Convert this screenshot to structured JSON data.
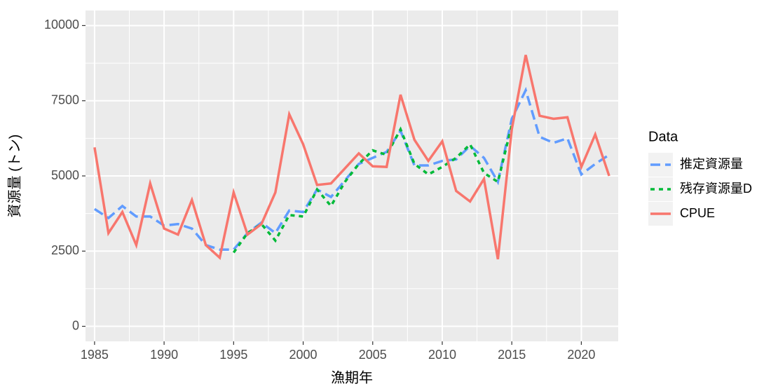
{
  "chart_data": {
    "type": "line",
    "xlabel": "漁期年",
    "ylabel": "資源量 (トン)",
    "legend_title": "Data",
    "x": [
      1985,
      1986,
      1987,
      1988,
      1989,
      1990,
      1991,
      1992,
      1993,
      1994,
      1995,
      1996,
      1997,
      1998,
      1999,
      2000,
      2001,
      2002,
      2003,
      2004,
      2005,
      2006,
      2007,
      2008,
      2009,
      2010,
      2011,
      2012,
      2013,
      2014,
      2015,
      2016,
      2017,
      2018,
      2019,
      2020,
      2021,
      2022
    ],
    "series": [
      {
        "name": "推定資源量",
        "color": "#619cff",
        "linetype": "dashed",
        "values": [
          3900,
          3600,
          4000,
          3650,
          3650,
          3350,
          3400,
          3250,
          2700,
          2550,
          2550,
          3100,
          3450,
          3100,
          3850,
          3800,
          4550,
          4300,
          4850,
          5400,
          5600,
          5800,
          6500,
          5350,
          5350,
          5500,
          5550,
          6000,
          5600,
          4800,
          6900,
          7850,
          6300,
          6100,
          6250,
          5050,
          5400,
          5700
        ]
      },
      {
        "name": "残存資源量D",
        "color": "#00ba38",
        "linetype": "dotted",
        "values": [
          null,
          null,
          null,
          null,
          null,
          null,
          null,
          null,
          null,
          null,
          2450,
          3100,
          3400,
          2850,
          3700,
          3650,
          4550,
          4000,
          4800,
          5400,
          5850,
          5700,
          6550,
          5400,
          5050,
          5300,
          5600,
          6050,
          5100,
          4800,
          6700,
          null,
          null,
          null,
          null,
          null,
          null,
          null
        ]
      },
      {
        "name": "CPUE",
        "color": "#f8766d",
        "linetype": "solid",
        "values": [
          5950,
          3100,
          3800,
          2700,
          4750,
          3250,
          3050,
          4200,
          2700,
          2280,
          4450,
          3050,
          3400,
          4450,
          7050,
          6050,
          4700,
          4750,
          5250,
          5750,
          5320,
          5300,
          7700,
          6200,
          5500,
          6150,
          4500,
          4150,
          4900,
          2230,
          6550,
          9020,
          7000,
          6900,
          6950,
          5300,
          6380,
          5000
        ]
      }
    ],
    "xlim": [
      1984.35,
      2022.65
    ],
    "xticks": [
      1985,
      1990,
      1995,
      2000,
      2005,
      2010,
      2015,
      2020
    ],
    "ylim": [
      -500,
      10500
    ],
    "yticks": [
      0,
      2500,
      5000,
      7500,
      10000
    ],
    "grid": true,
    "minor_grid": true,
    "legend_position": "right"
  }
}
